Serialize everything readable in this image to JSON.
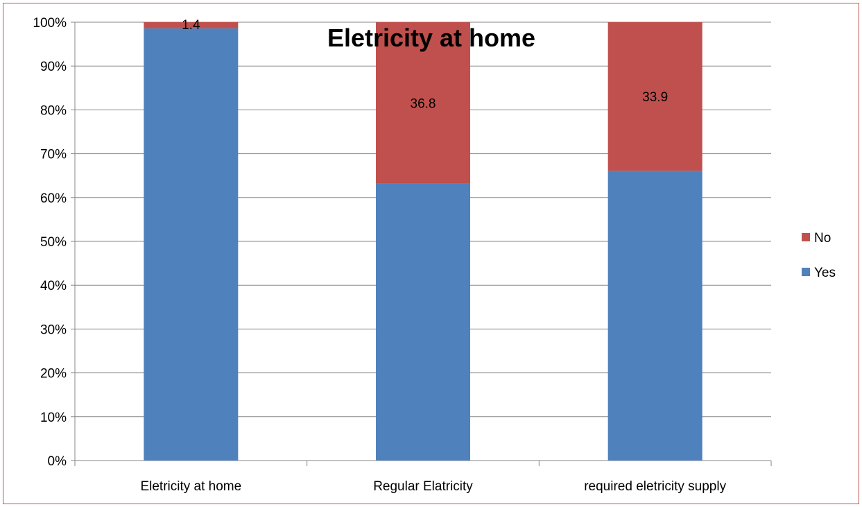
{
  "chart_data": {
    "type": "bar",
    "stacked": true,
    "percent_stacked": true,
    "title": "Eletricity at home",
    "categories": [
      "Eletricity at home",
      "Regular Elatricity",
      "required eletricity supply"
    ],
    "series": [
      {
        "name": "Yes",
        "values": [
          98.6,
          63.2,
          66.1
        ],
        "color": "#4f81bd"
      },
      {
        "name": "No",
        "values": [
          1.4,
          36.8,
          33.9
        ],
        "color": "#c0504d"
      }
    ],
    "data_labels": [
      "1.4",
      "36.8",
      "33.9"
    ],
    "data_label_series": "No",
    "ylim": [
      0,
      100
    ],
    "ytick_labels": [
      "0%",
      "10%",
      "20%",
      "30%",
      "40%",
      "50%",
      "60%",
      "70%",
      "80%",
      "90%",
      "100%"
    ],
    "grid": true,
    "legend_position": "right",
    "legend_order": [
      "No",
      "Yes"
    ],
    "border_color": "#c0504d"
  }
}
